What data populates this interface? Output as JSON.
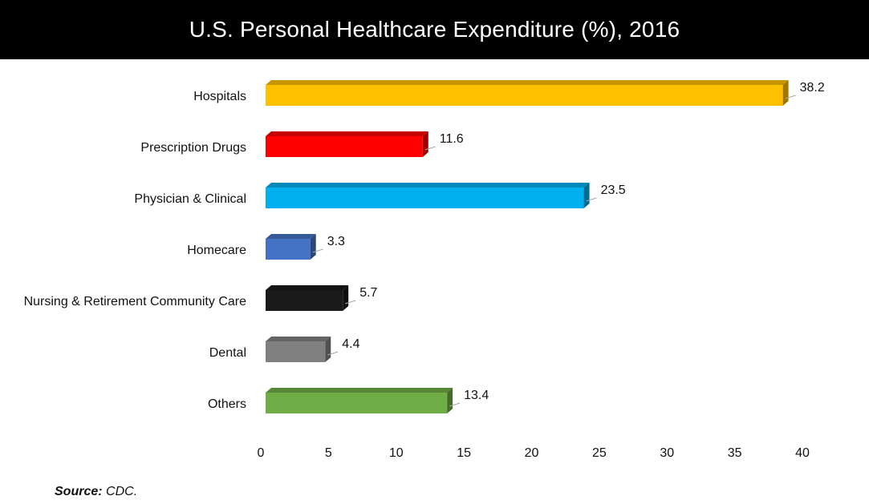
{
  "title": "U.S. Personal Healthcare Expenditure (%), 2016",
  "source": {
    "label": "Source:",
    "text": " CDC."
  },
  "chart_data": {
    "type": "bar",
    "orientation": "horizontal",
    "title": "U.S. Personal Healthcare Expenditure (%), 2016",
    "categories": [
      "Hospitals",
      "Prescription Drugs",
      "Physician & Clinical",
      "Homecare",
      "Nursing & Retirement Community Care",
      "Dental",
      "Others"
    ],
    "values": [
      38.2,
      11.6,
      23.5,
      3.3,
      5.7,
      4.4,
      13.4
    ],
    "data_labels": [
      "38.2",
      "11.6",
      "23.5",
      "3.3",
      "5.7",
      "4.4",
      "13.4"
    ],
    "colors": [
      "#FFC000",
      "#FF0000",
      "#00B0F0",
      "#4472C4",
      "#1A1A1A",
      "#808080",
      "#70AD47"
    ],
    "xlim": [
      0,
      40
    ],
    "xticks": [
      0,
      5,
      10,
      15,
      20,
      25,
      30,
      35,
      40
    ],
    "xlabel": "",
    "ylabel": "",
    "grid": false,
    "legend": "none",
    "style": "3d"
  }
}
